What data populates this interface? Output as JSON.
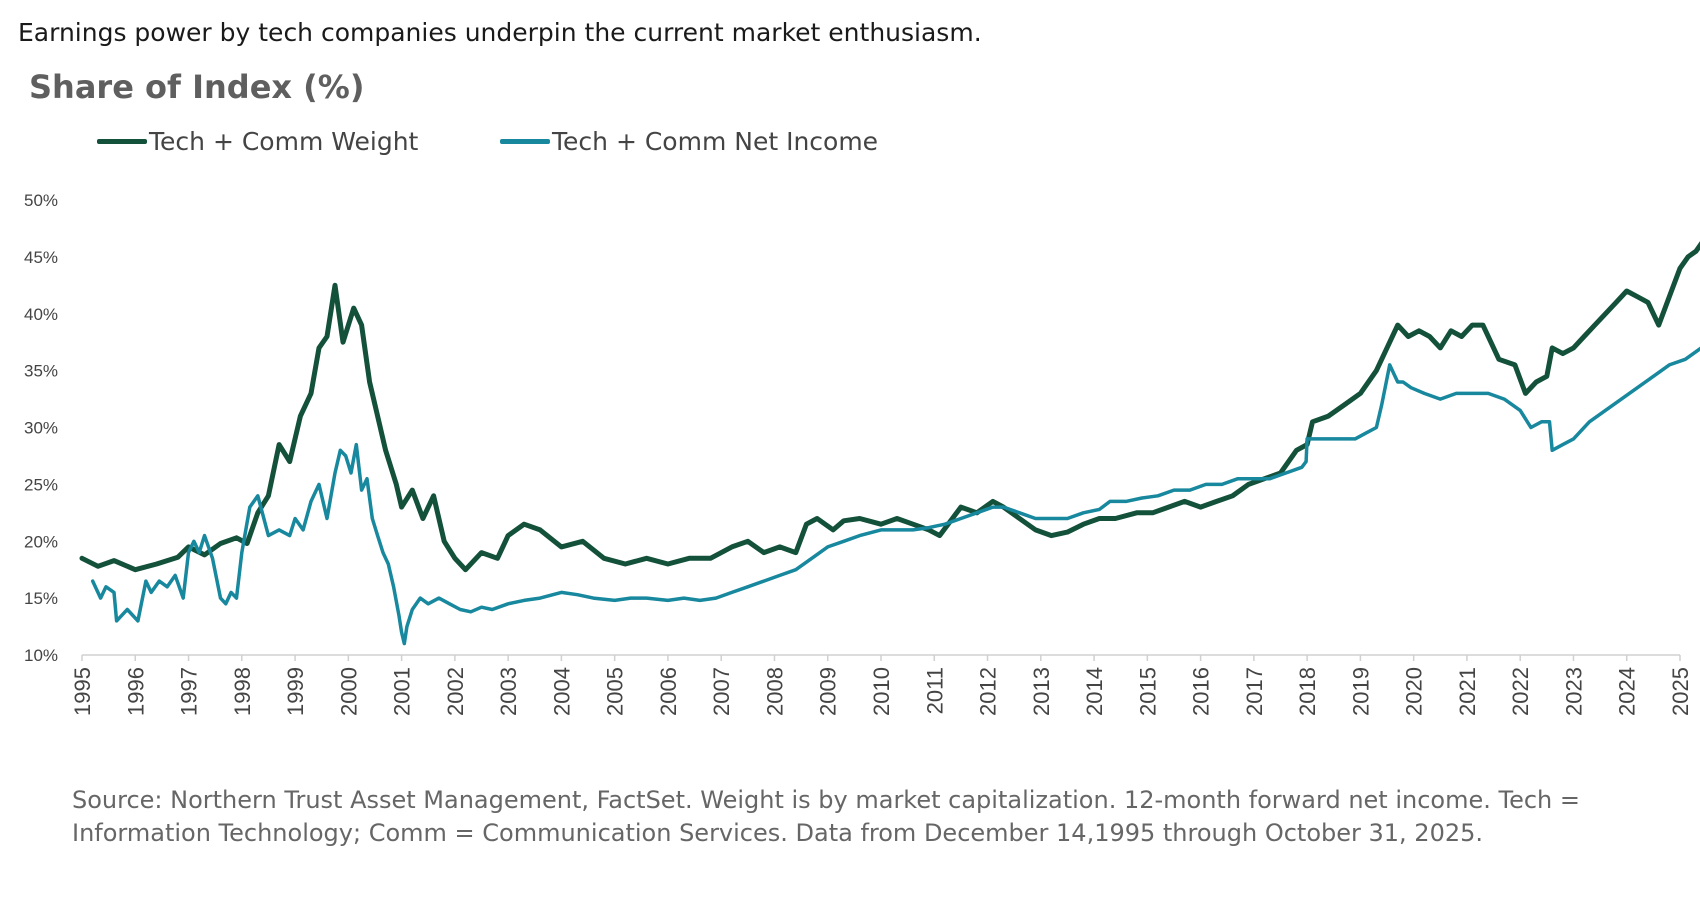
{
  "headline": "Earnings power by tech companies underpin the current market enthusiasm.",
  "source_note": "Source: Northern Trust Asset Management, FactSet. Weight is by market capitalization. 12-month forward net income. Tech = Information Technology; Comm = Communication Services. Data from December 14,1995 through October 31, 2025.",
  "colors": {
    "weight": "#13513b",
    "net_income": "#17889e",
    "axis": "#d0d0d0"
  },
  "chart_data": {
    "type": "line",
    "title": "Share of Index (%)",
    "xlabel": "",
    "ylabel": "",
    "ylim": [
      10,
      50
    ],
    "xlim": [
      1995,
      2025
    ],
    "y_ticks": [
      10,
      15,
      20,
      25,
      30,
      35,
      40,
      45,
      50
    ],
    "y_tick_labels": [
      "10%",
      "15%",
      "20%",
      "25%",
      "30%",
      "35%",
      "40%",
      "45%",
      "50%"
    ],
    "x_tick_labels": [
      "1995",
      "1996",
      "1997",
      "1998",
      "1999",
      "2000",
      "2001",
      "2002",
      "2003",
      "2004",
      "2005",
      "2006",
      "2007",
      "2008",
      "2009",
      "2010",
      "2011",
      "2012",
      "2013",
      "2014",
      "2015",
      "2016",
      "2017",
      "2018",
      "2019",
      "2020",
      "2021",
      "2022",
      "2023",
      "2024",
      "2025"
    ],
    "legend_position": "top-left",
    "grid": false,
    "series": [
      {
        "name": "Tech + Comm Weight",
        "x": [
          1995.0,
          1995.3,
          1995.6,
          1996.0,
          1996.4,
          1996.8,
          1997.0,
          1997.3,
          1997.6,
          1997.9,
          1998.1,
          1998.3,
          1998.5,
          1998.7,
          1998.9,
          1999.1,
          1999.3,
          1999.45,
          1999.6,
          1999.75,
          1999.9,
          2000.1,
          2000.25,
          2000.4,
          2000.55,
          2000.7,
          2000.9,
          2001.0,
          2001.2,
          2001.4,
          2001.6,
          2001.8,
          2002.0,
          2002.2,
          2002.5,
          2002.8,
          2003.0,
          2003.3,
          2003.6,
          2004.0,
          2004.4,
          2004.8,
          2005.2,
          2005.6,
          2006.0,
          2006.4,
          2006.8,
          2007.2,
          2007.5,
          2007.8,
          2008.1,
          2008.4,
          2008.6,
          2008.8,
          2009.1,
          2009.3,
          2009.6,
          2010.0,
          2010.3,
          2010.6,
          2010.9,
          2011.1,
          2011.5,
          2011.8,
          2012.1,
          2012.3,
          2012.6,
          2012.9,
          2013.2,
          2013.5,
          2013.8,
          2014.1,
          2014.4,
          2014.8,
          2015.1,
          2015.4,
          2015.7,
          2016.0,
          2016.3,
          2016.6,
          2016.9,
          2017.2,
          2017.5,
          2017.8,
          2018.0,
          2018.1,
          2018.4,
          2018.7,
          2019.0,
          2019.3,
          2019.5,
          2019.7,
          2019.9,
          2020.1,
          2020.3,
          2020.5,
          2020.7,
          2020.9,
          2021.1,
          2021.3,
          2021.6,
          2021.9,
          2022.1,
          2022.3,
          2022.5,
          2022.6,
          2022.8,
          2023.0,
          2023.2,
          2023.4,
          2023.6,
          2023.8,
          2024.0,
          2024.2,
          2024.4,
          2024.6,
          2024.8,
          2025.0,
          2025.15,
          2025.3,
          2025.45,
          2025.55
        ],
        "values": [
          18.5,
          17.8,
          18.3,
          17.5,
          18.0,
          18.6,
          19.5,
          18.8,
          19.8,
          20.3,
          19.8,
          22.5,
          24.0,
          28.5,
          27.0,
          31.0,
          33.0,
          37.0,
          38.0,
          42.5,
          37.5,
          40.5,
          39.0,
          34.0,
          31.0,
          28.0,
          25.0,
          23.0,
          24.5,
          22.0,
          24.0,
          20.0,
          18.5,
          17.5,
          19.0,
          18.5,
          20.5,
          21.5,
          21.0,
          19.5,
          20.0,
          18.5,
          18.0,
          18.5,
          18.0,
          18.5,
          18.5,
          19.5,
          20.0,
          19.0,
          19.5,
          19.0,
          21.5,
          22.0,
          21.0,
          21.8,
          22.0,
          21.5,
          22.0,
          21.5,
          21.0,
          20.5,
          23.0,
          22.5,
          23.5,
          23.0,
          22.0,
          21.0,
          20.5,
          20.8,
          21.5,
          22.0,
          22.0,
          22.5,
          22.5,
          23.0,
          23.5,
          23.0,
          23.5,
          24.0,
          25.0,
          25.5,
          26.0,
          28.0,
          28.5,
          30.5,
          31.0,
          32.0,
          33.0,
          35.0,
          37.0,
          39.0,
          38.0,
          38.5,
          38.0,
          37.0,
          38.5,
          38.0,
          39.0,
          39.0,
          36.0,
          35.5,
          33.0,
          34.0,
          34.5,
          37.0,
          36.5,
          37.0,
          38.0,
          39.0,
          40.0,
          41.0,
          42.0,
          41.5,
          41.0,
          39.0,
          41.5,
          44.0,
          45.0,
          45.5,
          46.5,
          45.5
        ],
        "color": "#13513b"
      },
      {
        "name": "Tech + Comm Net Income",
        "x": [
          1995.2,
          1995.35,
          1995.45,
          1995.6,
          1995.65,
          1995.85,
          1996.05,
          1996.2,
          1996.3,
          1996.45,
          1996.6,
          1996.75,
          1996.9,
          1997.0,
          1997.1,
          1997.2,
          1997.3,
          1997.45,
          1997.6,
          1997.7,
          1997.8,
          1997.9,
          1998.0,
          1998.15,
          1998.3,
          1998.5,
          1998.7,
          1998.9,
          1999.0,
          1999.15,
          1999.3,
          1999.45,
          1999.6,
          1999.75,
          1999.85,
          1999.95,
          2000.05,
          2000.15,
          2000.25,
          2000.35,
          2000.45,
          2000.55,
          2000.65,
          2000.75,
          2000.85,
          2000.95,
          2001.0,
          2001.05,
          2001.1,
          2001.2,
          2001.35,
          2001.5,
          2001.7,
          2001.9,
          2002.1,
          2002.3,
          2002.5,
          2002.7,
          2003.0,
          2003.3,
          2003.6,
          2004.0,
          2004.3,
          2004.6,
          2005.0,
          2005.3,
          2005.6,
          2006.0,
          2006.3,
          2006.6,
          2006.9,
          2007.2,
          2007.5,
          2007.8,
          2008.1,
          2008.4,
          2008.7,
          2009.0,
          2009.3,
          2009.6,
          2010.0,
          2010.3,
          2010.6,
          2010.9,
          2011.2,
          2011.5,
          2011.8,
          2012.1,
          2012.3,
          2012.6,
          2012.9,
          2013.2,
          2013.5,
          2013.8,
          2014.1,
          2014.3,
          2014.6,
          2014.9,
          2015.2,
          2015.5,
          2015.8,
          2016.1,
          2016.4,
          2016.7,
          2017.0,
          2017.3,
          2017.6,
          2017.9,
          2017.98,
          2018.0,
          2018.3,
          2018.6,
          2018.9,
          2019.1,
          2019.3,
          2019.4,
          2019.55,
          2019.7,
          2019.8,
          2019.95,
          2020.2,
          2020.5,
          2020.8,
          2021.1,
          2021.4,
          2021.7,
          2022.0,
          2022.2,
          2022.4,
          2022.55,
          2022.6,
          2022.8,
          2023.0,
          2023.3,
          2023.6,
          2023.9,
          2024.2,
          2024.5,
          2024.8,
          2025.1,
          2025.4,
          2025.55
        ],
        "values": [
          16.5,
          15.0,
          16.0,
          15.5,
          13.0,
          14.0,
          13.0,
          16.5,
          15.5,
          16.5,
          16.0,
          17.0,
          15.0,
          19.0,
          20.0,
          19.0,
          20.5,
          18.5,
          15.0,
          14.5,
          15.5,
          15.0,
          19.0,
          23.0,
          24.0,
          20.5,
          21.0,
          20.5,
          22.0,
          21.0,
          23.5,
          25.0,
          22.0,
          26.0,
          28.0,
          27.5,
          26.0,
          28.5,
          24.5,
          25.5,
          22.0,
          20.5,
          19.0,
          18.0,
          16.0,
          13.5,
          12.0,
          11.0,
          12.5,
          14.0,
          15.0,
          14.5,
          15.0,
          14.5,
          14.0,
          13.8,
          14.2,
          14.0,
          14.5,
          14.8,
          15.0,
          15.5,
          15.3,
          15.0,
          14.8,
          15.0,
          15.0,
          14.8,
          15.0,
          14.8,
          15.0,
          15.5,
          16.0,
          16.5,
          17.0,
          17.5,
          18.5,
          19.5,
          20.0,
          20.5,
          21.0,
          21.0,
          21.0,
          21.2,
          21.5,
          22.0,
          22.5,
          23.0,
          23.0,
          22.5,
          22.0,
          22.0,
          22.0,
          22.5,
          22.8,
          23.5,
          23.5,
          23.8,
          24.0,
          24.5,
          24.5,
          25.0,
          25.0,
          25.5,
          25.5,
          25.5,
          26.0,
          26.5,
          27.0,
          29.0,
          29.0,
          29.0,
          29.0,
          29.5,
          30.0,
          32.0,
          35.5,
          34.0,
          34.0,
          33.5,
          33.0,
          32.5,
          33.0,
          33.0,
          33.0,
          32.5,
          31.5,
          30.0,
          30.5,
          30.5,
          28.0,
          28.5,
          29.0,
          30.5,
          31.5,
          32.5,
          33.5,
          34.5,
          35.5,
          36.0,
          37.0,
          38.0
        ],
        "color": "#17889e"
      }
    ]
  }
}
